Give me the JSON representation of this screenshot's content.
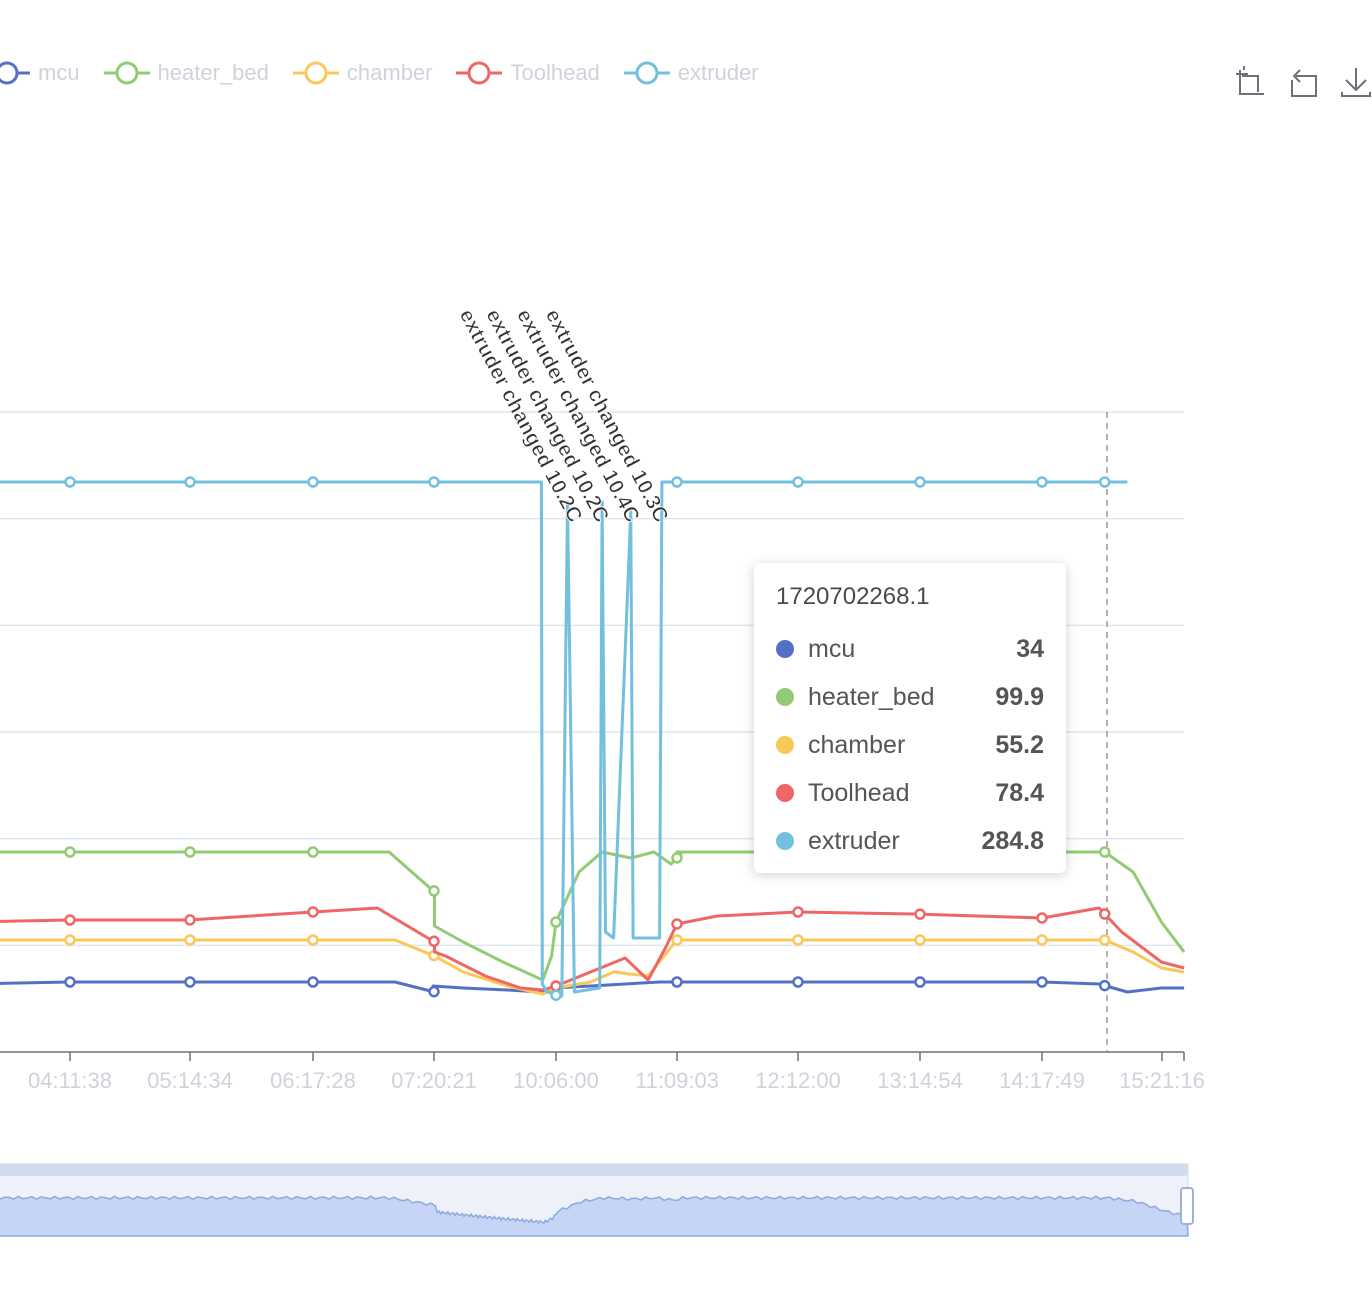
{
  "legend": [
    {
      "name": "mcu",
      "color": "#5470c6"
    },
    {
      "name": "heater_bed",
      "color": "#91cc75"
    },
    {
      "name": "chamber",
      "color": "#fac858"
    },
    {
      "name": "Toolhead",
      "color": "#ee6666"
    },
    {
      "name": "extruder",
      "color": "#73c0de"
    }
  ],
  "toolbox": [
    {
      "icon": "zoom-icon"
    },
    {
      "icon": "zoom-reset-icon"
    },
    {
      "icon": "download-icon"
    }
  ],
  "tooltip": {
    "title": "1720702268.1",
    "rows": [
      {
        "name": "mcu",
        "value": "34",
        "color": "#5470c6"
      },
      {
        "name": "heater_bed",
        "value": "99.9",
        "color": "#91cc75"
      },
      {
        "name": "chamber",
        "value": "55.2",
        "color": "#fac858"
      },
      {
        "name": "Toolhead",
        "value": "78.4",
        "color": "#ee6666"
      },
      {
        "name": "extruder",
        "value": "284.8",
        "color": "#73c0de"
      }
    ]
  },
  "chart_data": {
    "type": "line",
    "x_ticks": [
      "04:11:38",
      "05:14:34",
      "06:17:28",
      "07:20:21",
      "10:06:00",
      "11:09:03",
      "12:12:00",
      "13:14:54",
      "14:17:49",
      "15:21:16"
    ],
    "annotations": [
      {
        "text": "extruder changed 10.2C",
        "x": "09:48"
      },
      {
        "text": "extruder changed 10.2C",
        "x": "10:13"
      },
      {
        "text": "extruder changed 10.4C",
        "x": "10:29"
      },
      {
        "text": "extruder changed 10.3C",
        "x": "10:44"
      }
    ],
    "ylim": [
      0,
      320
    ],
    "grid": true,
    "legend_position": "top-left",
    "series": [
      {
        "name": "mcu",
        "color": "#5470c6",
        "values": [
          [
            3.3,
            34
          ],
          [
            4.19,
            35
          ],
          [
            5.23,
            35
          ],
          [
            6.29,
            35
          ],
          [
            7.0,
            35
          ],
          [
            7.35,
            30
          ],
          [
            7.33,
            33
          ],
          [
            8.0,
            32
          ],
          [
            9.0,
            31
          ],
          [
            9.75,
            30
          ],
          [
            10.0,
            32
          ],
          [
            10.4,
            33
          ],
          [
            10.7,
            34
          ],
          [
            11.0,
            35
          ],
          [
            11.15,
            35
          ],
          [
            12.2,
            35
          ],
          [
            13.2,
            35
          ],
          [
            14.3,
            35
          ],
          [
            14.8,
            34
          ],
          [
            15.05,
            30
          ],
          [
            15.35,
            32
          ],
          [
            15.55,
            32
          ]
        ]
      },
      {
        "name": "heater_bed",
        "color": "#91cc75",
        "values": [
          [
            3.3,
            100
          ],
          [
            4.19,
            100
          ],
          [
            5.23,
            100
          ],
          [
            6.29,
            100
          ],
          [
            6.95,
            100
          ],
          [
            7.35,
            80
          ],
          [
            7.35,
            63
          ],
          [
            8.0,
            55
          ],
          [
            8.9,
            45
          ],
          [
            9.4,
            40
          ],
          [
            9.8,
            36
          ],
          [
            10.0,
            48
          ],
          [
            10.1,
            65
          ],
          [
            10.3,
            90
          ],
          [
            10.5,
            100
          ],
          [
            10.75,
            97
          ],
          [
            10.95,
            100
          ],
          [
            11.1,
            94
          ],
          [
            11.2,
            100
          ],
          [
            11.15,
            100
          ],
          [
            12.2,
            100
          ],
          [
            13.2,
            100
          ],
          [
            14.3,
            100
          ],
          [
            14.85,
            100
          ],
          [
            15.1,
            90
          ],
          [
            15.35,
            65
          ],
          [
            15.55,
            50
          ]
        ]
      },
      {
        "name": "chamber",
        "color": "#fac858",
        "values": [
          [
            3.3,
            56
          ],
          [
            4.19,
            56
          ],
          [
            5.23,
            56
          ],
          [
            6.29,
            56
          ],
          [
            7.0,
            56
          ],
          [
            7.35,
            48
          ],
          [
            7.35,
            48
          ],
          [
            8.0,
            40
          ],
          [
            9.0,
            33
          ],
          [
            9.8,
            29
          ],
          [
            10.1,
            32
          ],
          [
            10.4,
            35
          ],
          [
            10.6,
            40
          ],
          [
            10.9,
            38
          ],
          [
            11.15,
            56
          ],
          [
            12.2,
            56
          ],
          [
            13.2,
            56
          ],
          [
            14.3,
            56
          ],
          [
            14.85,
            56
          ],
          [
            15.1,
            50
          ],
          [
            15.35,
            42
          ],
          [
            15.55,
            40
          ]
        ]
      },
      {
        "name": "Toolhead",
        "color": "#ee6666",
        "values": [
          [
            3.3,
            65
          ],
          [
            4.19,
            66
          ],
          [
            5.23,
            66
          ],
          [
            6.29,
            70
          ],
          [
            6.85,
            72
          ],
          [
            7.35,
            55
          ],
          [
            7.35,
            50
          ],
          [
            7.6,
            48
          ],
          [
            8.5,
            38
          ],
          [
            9.3,
            32
          ],
          [
            9.8,
            31
          ],
          [
            10.1,
            33
          ],
          [
            10.4,
            40
          ],
          [
            10.7,
            47
          ],
          [
            10.9,
            36
          ],
          [
            11.05,
            52
          ],
          [
            11.15,
            64
          ],
          [
            11.5,
            68
          ],
          [
            12.2,
            70
          ],
          [
            13.2,
            69
          ],
          [
            14.3,
            67
          ],
          [
            14.8,
            72
          ],
          [
            15.0,
            60
          ],
          [
            15.35,
            45
          ],
          [
            15.55,
            42
          ]
        ]
      },
      {
        "name": "extruder",
        "color": "#73c0de",
        "values": [
          [
            3.3,
            285
          ],
          [
            4.19,
            285
          ],
          [
            5.23,
            285
          ],
          [
            6.29,
            285
          ],
          [
            7.35,
            285
          ],
          [
            8.5,
            285
          ],
          [
            9.77,
            285
          ],
          [
            9.79,
            34
          ],
          [
            9.9,
            30
          ],
          [
            10.15,
            28
          ],
          [
            10.2,
            275
          ],
          [
            10.26,
            30
          ],
          [
            10.48,
            32
          ],
          [
            10.5,
            275
          ],
          [
            10.53,
            60
          ],
          [
            10.6,
            57
          ],
          [
            10.75,
            270
          ],
          [
            10.77,
            57
          ],
          [
            11.0,
            57
          ],
          [
            11.02,
            285
          ],
          [
            12.2,
            285
          ],
          [
            13.2,
            285
          ],
          [
            14.3,
            285
          ],
          [
            14.85,
            285
          ],
          [
            15.05,
            285
          ]
        ]
      }
    ]
  }
}
